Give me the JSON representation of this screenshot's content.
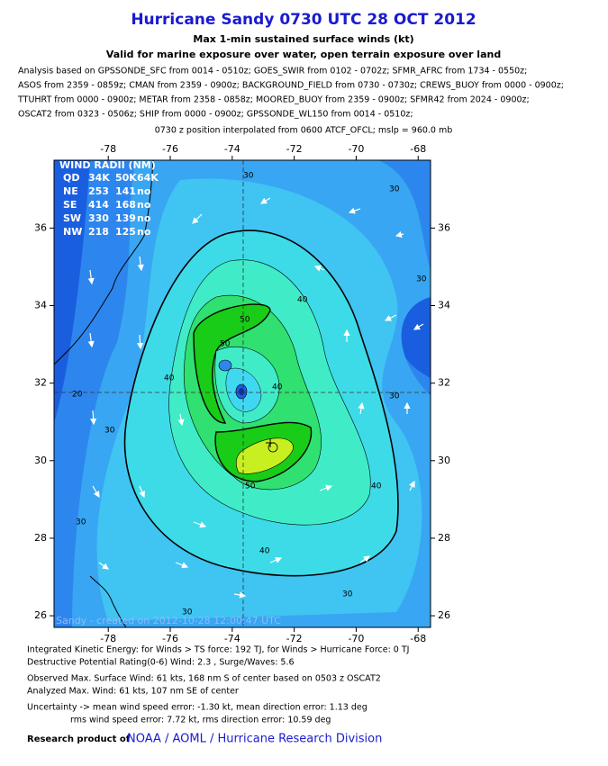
{
  "title": "Hurricane Sandy 0730 UTC 28 OCT 2012",
  "subtitle": "Max 1-min sustained surface winds (kt)",
  "validity": "Valid for marine exposure over water, open terrain exposure over land",
  "analysis_lines": [
    "Analysis based on GPSSONDE_SFC from 0014 - 0510z; GOES_SWIR from 0102 - 0702z; SFMR_AFRC from 1734 - 0550z;",
    "ASOS from 2359 - 0859z; CMAN from 2359 - 0900z; BACKGROUND_FIELD from 0730 - 0730z; CREWS_BUOY from 0000 - 0900z;",
    "TTUHRT from 0000 - 0900z; METAR from 2358 - 0858z; MOORED_BUOY from 2359 - 0900z; SFMR42 from 2024 - 0900z;",
    "OSCAT2 from 0323 - 0506z; SHIP from 0000 - 0900z; GPSSONDE_WL150 from 0014 - 0510z;"
  ],
  "position_note": "0730 z position interpolated from 0600 ATCF_OFCL; mslp = 960.0 mb",
  "map": {
    "lon_range": [
      -79.75,
      -67.6
    ],
    "lat_range": [
      25.7,
      37.75
    ],
    "lon_ticks": [
      -78,
      -76,
      -74,
      -72,
      -70,
      -68
    ],
    "lat_ticks": [
      26,
      28,
      30,
      32,
      34,
      36
    ],
    "wind_radii": {
      "title": "WIND RADII (NM)",
      "header": [
        "QD",
        "34K",
        "50K",
        "64K"
      ],
      "rows": [
        [
          "NE",
          253,
          141,
          "no"
        ],
        [
          "SE",
          414,
          168,
          "no"
        ],
        [
          "SW",
          330,
          139,
          "no"
        ],
        [
          "NW",
          218,
          125,
          "no"
        ]
      ]
    },
    "contour_labels": [
      30,
      30,
      30,
      30,
      20,
      30,
      40,
      50,
      50,
      40,
      40,
      30,
      40,
      50,
      40,
      30,
      30
    ],
    "watermark": "Sandy - created on 2012-10-28 12:00:47 UTC"
  },
  "footer": {
    "ike": "Integrated Kinetic Energy: for Winds > TS force: 192 TJ, for Winds > Hurricane Force: 0 TJ",
    "dpr": "Destructive Potential Rating(0-6)  Wind: 2.3 , Surge/Waves: 5.6",
    "observed": "Observed Max. Surface Wind: 61 kts, 168 nm S of center based on 0503 z OSCAT2",
    "analyzed": "Analyzed Max. Wind: 61 kts, 107 nm  SE of center",
    "uncertainty": "Uncertainty -> mean wind speed error:  -1.30 kt, mean direction error: 1.13 deg",
    "rms": "rms wind speed error: 7.72 kt, rms direction error: 10.59 deg",
    "research_prefix": "Research product of",
    "research_link": "NOAA / AOML / Hurricane Research Division"
  }
}
